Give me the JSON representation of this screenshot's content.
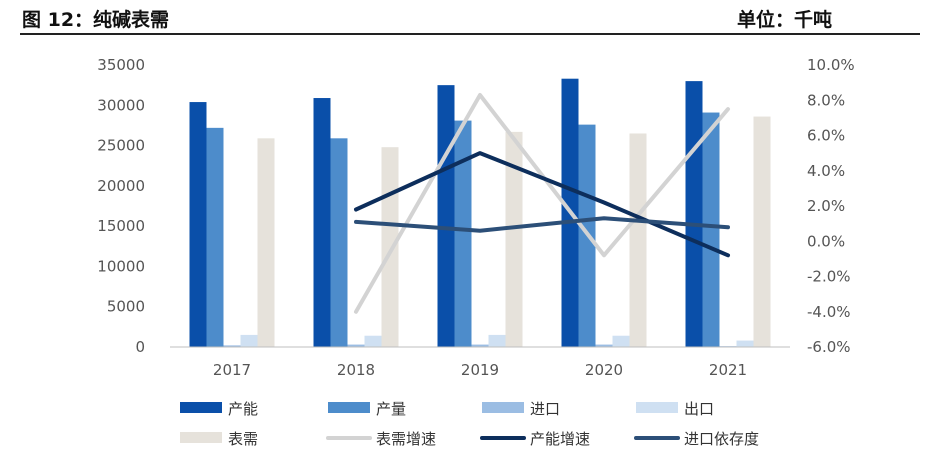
{
  "header": {
    "title": "图 12：纯碱表需",
    "unit": "单位：千吨"
  },
  "chart_data": {
    "type": "bar",
    "categories": [
      "2017",
      "2018",
      "2019",
      "2020",
      "2021"
    ],
    "series": [
      {
        "name": "产能",
        "kind": "bar",
        "axis": "left",
        "color": "#0a4fa9",
        "values": [
          30400,
          30900,
          32500,
          33300,
          33000
        ]
      },
      {
        "name": "产量",
        "kind": "bar",
        "axis": "left",
        "color": "#4d8ccb",
        "values": [
          27200,
          25900,
          28100,
          27600,
          29100
        ]
      },
      {
        "name": "进口",
        "kind": "bar",
        "axis": "left",
        "color": "#9bbde3",
        "values": [
          200,
          300,
          300,
          300,
          100
        ]
      },
      {
        "name": "出口",
        "kind": "bar",
        "axis": "left",
        "color": "#cfe0f2",
        "values": [
          1500,
          1400,
          1500,
          1400,
          800
        ]
      },
      {
        "name": "表需",
        "kind": "bar",
        "axis": "left",
        "color": "#e6e2db",
        "values": [
          25900,
          24800,
          26700,
          26500,
          28600
        ]
      },
      {
        "name": "表需增速",
        "kind": "line",
        "axis": "right",
        "color": "#d3d3d3",
        "values": [
          null,
          -4.0,
          8.3,
          -0.8,
          7.5
        ]
      },
      {
        "name": "产能增速",
        "kind": "line",
        "axis": "right",
        "color": "#0d2e5c",
        "values": [
          null,
          1.8,
          5.0,
          2.2,
          -0.8
        ]
      },
      {
        "name": "进口依存度",
        "kind": "line",
        "axis": "right",
        "color": "#2c4f78",
        "values": [
          null,
          1.1,
          0.6,
          1.3,
          0.8
        ]
      }
    ],
    "y_left": {
      "min": 0,
      "max": 35000,
      "step": 5000
    },
    "y_right": {
      "min": -6,
      "max": 10,
      "step": 2,
      "format": "percent"
    },
    "legend": "bottom",
    "grid": false
  }
}
